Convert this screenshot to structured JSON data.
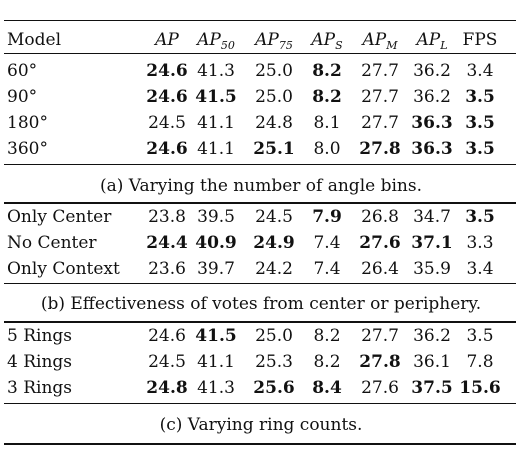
{
  "header": {
    "model": "Model",
    "cols": [
      {
        "base": "AP",
        "sub": ""
      },
      {
        "base": "AP",
        "sub": "50"
      },
      {
        "base": "AP",
        "sub": "75"
      },
      {
        "base": "AP",
        "sub": "S"
      },
      {
        "base": "AP",
        "sub": "M"
      },
      {
        "base": "AP",
        "sub": "L"
      },
      {
        "base": "FPS",
        "sub": ""
      }
    ]
  },
  "sections": [
    {
      "caption": "(a) Varying the number of angle bins.",
      "rows": [
        {
          "label": "60°",
          "cells": [
            {
              "v": "24.6",
              "b": true
            },
            {
              "v": "41.3",
              "b": false
            },
            {
              "v": "25.0",
              "b": false
            },
            {
              "v": "8.2",
              "b": true
            },
            {
              "v": "27.7",
              "b": false
            },
            {
              "v": "36.2",
              "b": false
            },
            {
              "v": "3.4",
              "b": false
            }
          ]
        },
        {
          "label": "90°",
          "cells": [
            {
              "v": "24.6",
              "b": true
            },
            {
              "v": "41.5",
              "b": true
            },
            {
              "v": "25.0",
              "b": false
            },
            {
              "v": "8.2",
              "b": true
            },
            {
              "v": "27.7",
              "b": false
            },
            {
              "v": "36.2",
              "b": false
            },
            {
              "v": "3.5",
              "b": true
            }
          ]
        },
        {
          "label": "180°",
          "cells": [
            {
              "v": "24.5",
              "b": false
            },
            {
              "v": "41.1",
              "b": false
            },
            {
              "v": "24.8",
              "b": false
            },
            {
              "v": "8.1",
              "b": false
            },
            {
              "v": "27.7",
              "b": false
            },
            {
              "v": "36.3",
              "b": true
            },
            {
              "v": "3.5",
              "b": true
            }
          ]
        },
        {
          "label": "360°",
          "cells": [
            {
              "v": "24.6",
              "b": true
            },
            {
              "v": "41.1",
              "b": false
            },
            {
              "v": "25.1",
              "b": true
            },
            {
              "v": "8.0",
              "b": false
            },
            {
              "v": "27.8",
              "b": true
            },
            {
              "v": "36.3",
              "b": true
            },
            {
              "v": "3.5",
              "b": true
            }
          ]
        }
      ]
    },
    {
      "caption": "(b) Effectiveness of votes from center or periphery.",
      "rows": [
        {
          "label": "Only Center",
          "cells": [
            {
              "v": "23.8",
              "b": false
            },
            {
              "v": "39.5",
              "b": false
            },
            {
              "v": "24.5",
              "b": false
            },
            {
              "v": "7.9",
              "b": true
            },
            {
              "v": "26.8",
              "b": false
            },
            {
              "v": "34.7",
              "b": false
            },
            {
              "v": "3.5",
              "b": true
            }
          ]
        },
        {
          "label": "No Center",
          "cells": [
            {
              "v": "24.4",
              "b": true
            },
            {
              "v": "40.9",
              "b": true
            },
            {
              "v": "24.9",
              "b": true
            },
            {
              "v": "7.4",
              "b": false
            },
            {
              "v": "27.6",
              "b": true
            },
            {
              "v": "37.1",
              "b": true
            },
            {
              "v": "3.3",
              "b": false
            }
          ]
        },
        {
          "label": "Only Context",
          "cells": [
            {
              "v": "23.6",
              "b": false
            },
            {
              "v": "39.7",
              "b": false
            },
            {
              "v": "24.2",
              "b": false
            },
            {
              "v": "7.4",
              "b": false
            },
            {
              "v": "26.4",
              "b": false
            },
            {
              "v": "35.9",
              "b": false
            },
            {
              "v": "3.4",
              "b": false
            }
          ]
        }
      ]
    },
    {
      "caption": "(c) Varying ring counts.",
      "rows": [
        {
          "label": "5 Rings",
          "cells": [
            {
              "v": "24.6",
              "b": false
            },
            {
              "v": "41.5",
              "b": true
            },
            {
              "v": "25.0",
              "b": false
            },
            {
              "v": "8.2",
              "b": false
            },
            {
              "v": "27.7",
              "b": false
            },
            {
              "v": "36.2",
              "b": false
            },
            {
              "v": "3.5",
              "b": false
            }
          ]
        },
        {
          "label": "4 Rings",
          "cells": [
            {
              "v": "24.5",
              "b": false
            },
            {
              "v": "41.1",
              "b": false
            },
            {
              "v": "25.3",
              "b": false
            },
            {
              "v": "8.2",
              "b": false
            },
            {
              "v": "27.8",
              "b": true
            },
            {
              "v": "36.1",
              "b": false
            },
            {
              "v": "7.8",
              "b": false
            }
          ]
        },
        {
          "label": "3 Rings",
          "cells": [
            {
              "v": "24.8",
              "b": true
            },
            {
              "v": "41.3",
              "b": false
            },
            {
              "v": "25.6",
              "b": true
            },
            {
              "v": "8.4",
              "b": true
            },
            {
              "v": "27.6",
              "b": false
            },
            {
              "v": "37.5",
              "b": true
            },
            {
              "v": "15.6",
              "b": true
            }
          ]
        }
      ]
    }
  ]
}
